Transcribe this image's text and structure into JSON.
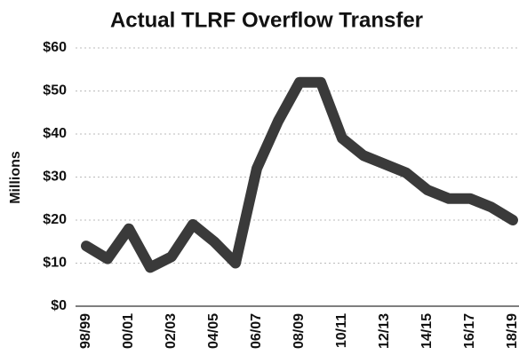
{
  "chart_data": {
    "type": "line",
    "title": "Actual TLRF Overflow Transfer",
    "y_label": "Millions",
    "categories": [
      "98/99",
      null,
      "00/01",
      null,
      "02/03",
      null,
      "04/05",
      null,
      "06/07",
      null,
      "08/09",
      null,
      "10/11",
      null,
      "12/13",
      null,
      "14/15",
      null,
      "16/17",
      null,
      "18/19"
    ],
    "series": [
      {
        "name": "TLRF Overflow Transfer",
        "color": "#3a3a3a",
        "values": [
          14,
          11,
          18,
          9,
          11.5,
          19,
          15,
          10,
          32,
          43,
          52,
          52,
          39,
          35,
          33,
          31,
          27,
          25,
          25,
          23,
          20
        ]
      }
    ],
    "ylim": [
      0,
      60
    ],
    "yticks": [
      {
        "value": 0,
        "label": "$0"
      },
      {
        "value": 10,
        "label": "$10"
      },
      {
        "value": 20,
        "label": "$20"
      },
      {
        "value": 30,
        "label": "$30"
      },
      {
        "value": 40,
        "label": "$40"
      },
      {
        "value": 50,
        "label": "$50"
      },
      {
        "value": 60,
        "label": "$60"
      }
    ],
    "grid": true
  }
}
